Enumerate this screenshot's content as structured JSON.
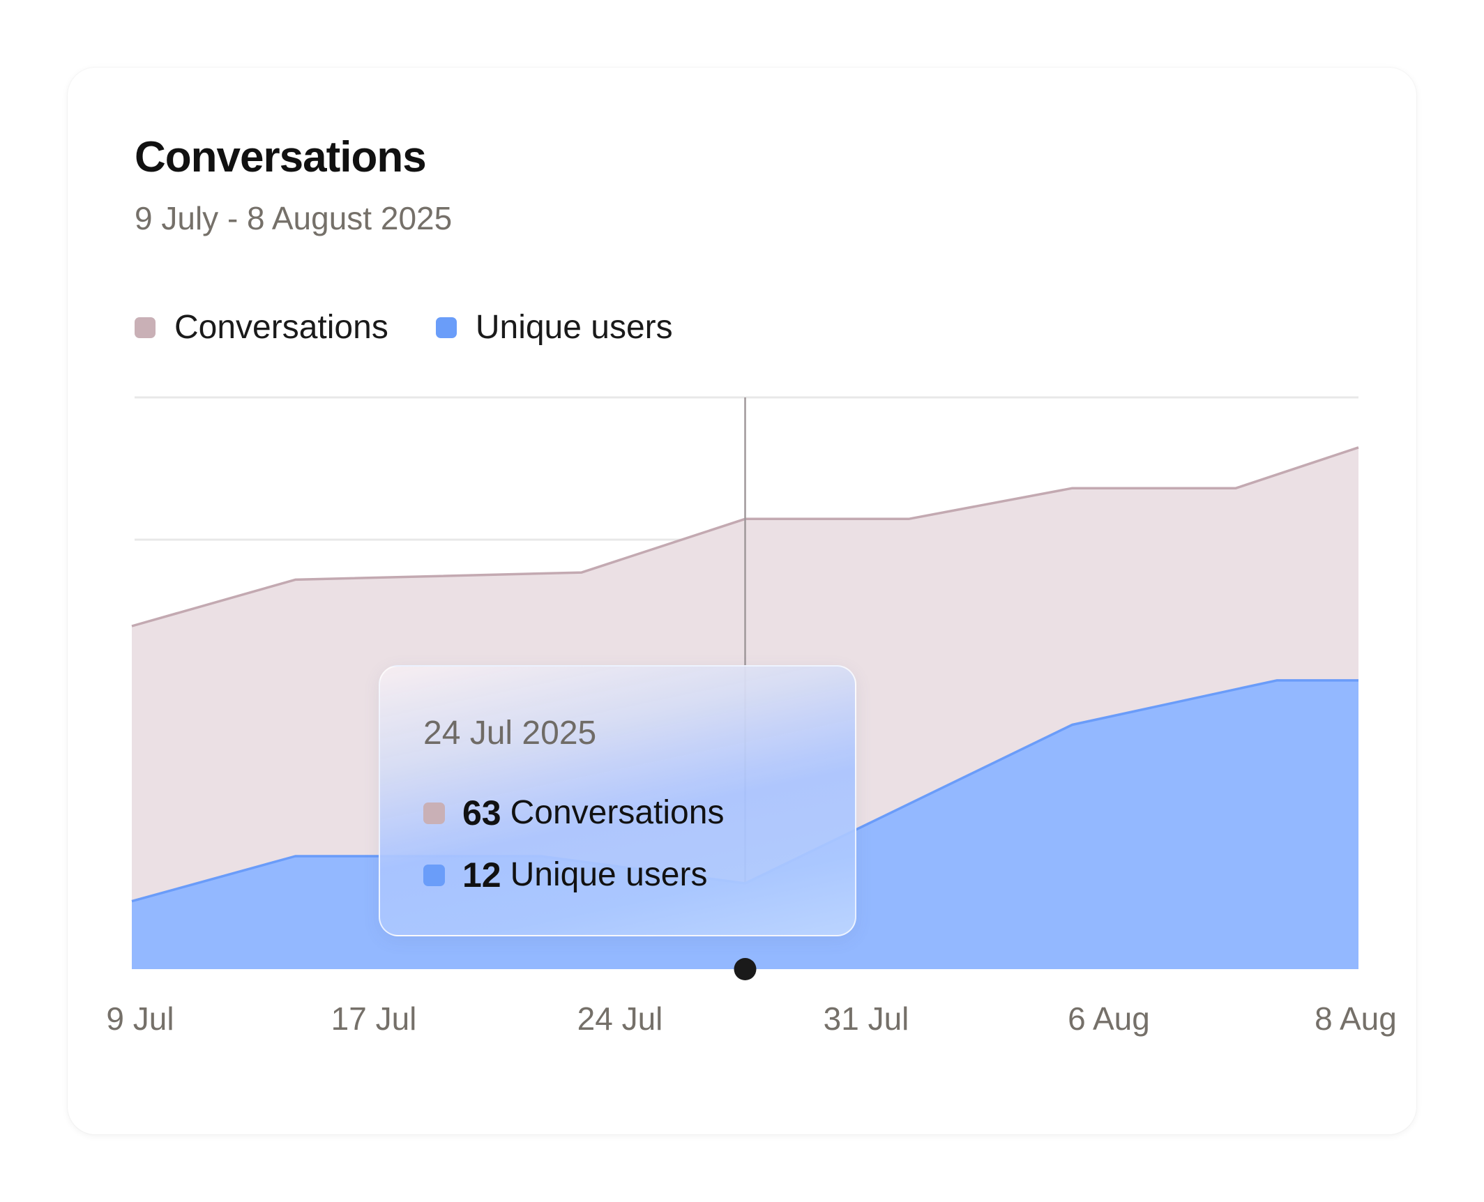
{
  "card": {
    "title": "Conversations",
    "subtitle": "9 July - 8 August 2025"
  },
  "colors": {
    "conversations_fill": "#ebe0e4",
    "conversations_line": "#c3a9b1",
    "conversations_swatch": "#c9b0b6",
    "unique_users_fill": "#93b8ff",
    "unique_users_line": "#6a9cf9",
    "unique_users_swatch": "#6a9df9",
    "gridline": "#e8e8e8",
    "crosshair": "#a0989a",
    "marker": "#1a1a1a",
    "axis_text": "#757069"
  },
  "legend": [
    {
      "label": "Conversations",
      "color": "#c9b0b6"
    },
    {
      "label": "Unique users",
      "color": "#6a9df9"
    }
  ],
  "tooltip": {
    "date": "24 Jul 2025",
    "rows": [
      {
        "value": "63",
        "label": "Conversations",
        "color": "#c9b0b6"
      },
      {
        "value": "12",
        "label": "Unique users",
        "color": "#6a9df9"
      }
    ]
  },
  "chart_data": {
    "type": "area",
    "title": "Conversations",
    "subtitle": "9 July - 8 August 2025",
    "x_ticks": [
      "9 Jul",
      "17 Jul",
      "24 Jul",
      "31 Jul",
      "6 Aug",
      "8 Aug"
    ],
    "grid": true,
    "legend_position": "top-left",
    "stacked": false,
    "y_range": [
      0,
      80
    ],
    "series": [
      {
        "name": "Conversations",
        "points": [
          {
            "x": "2025-07-09",
            "y": 48
          },
          {
            "x": "2025-07-13",
            "y": 54.5
          },
          {
            "x": "2025-07-20",
            "y": 55.5
          },
          {
            "x": "2025-07-24",
            "y": 63
          },
          {
            "x": "2025-07-28",
            "y": 63
          },
          {
            "x": "2025-08-01",
            "y": 67.3
          },
          {
            "x": "2025-08-05",
            "y": 67.3
          },
          {
            "x": "2025-08-08",
            "y": 73
          }
        ]
      },
      {
        "name": "Unique users",
        "points": [
          {
            "x": "2025-07-09",
            "y": 9.5
          },
          {
            "x": "2025-07-13",
            "y": 15.8
          },
          {
            "x": "2025-07-19",
            "y": 15.8
          },
          {
            "x": "2025-07-24",
            "y": 12
          },
          {
            "x": "2025-08-01",
            "y": 34.2
          },
          {
            "x": "2025-08-06",
            "y": 40.4
          },
          {
            "x": "2025-08-08",
            "y": 40.4
          }
        ]
      }
    ],
    "highlight": {
      "x": "2025-07-24",
      "conversations": 63,
      "unique_users": 12
    }
  }
}
